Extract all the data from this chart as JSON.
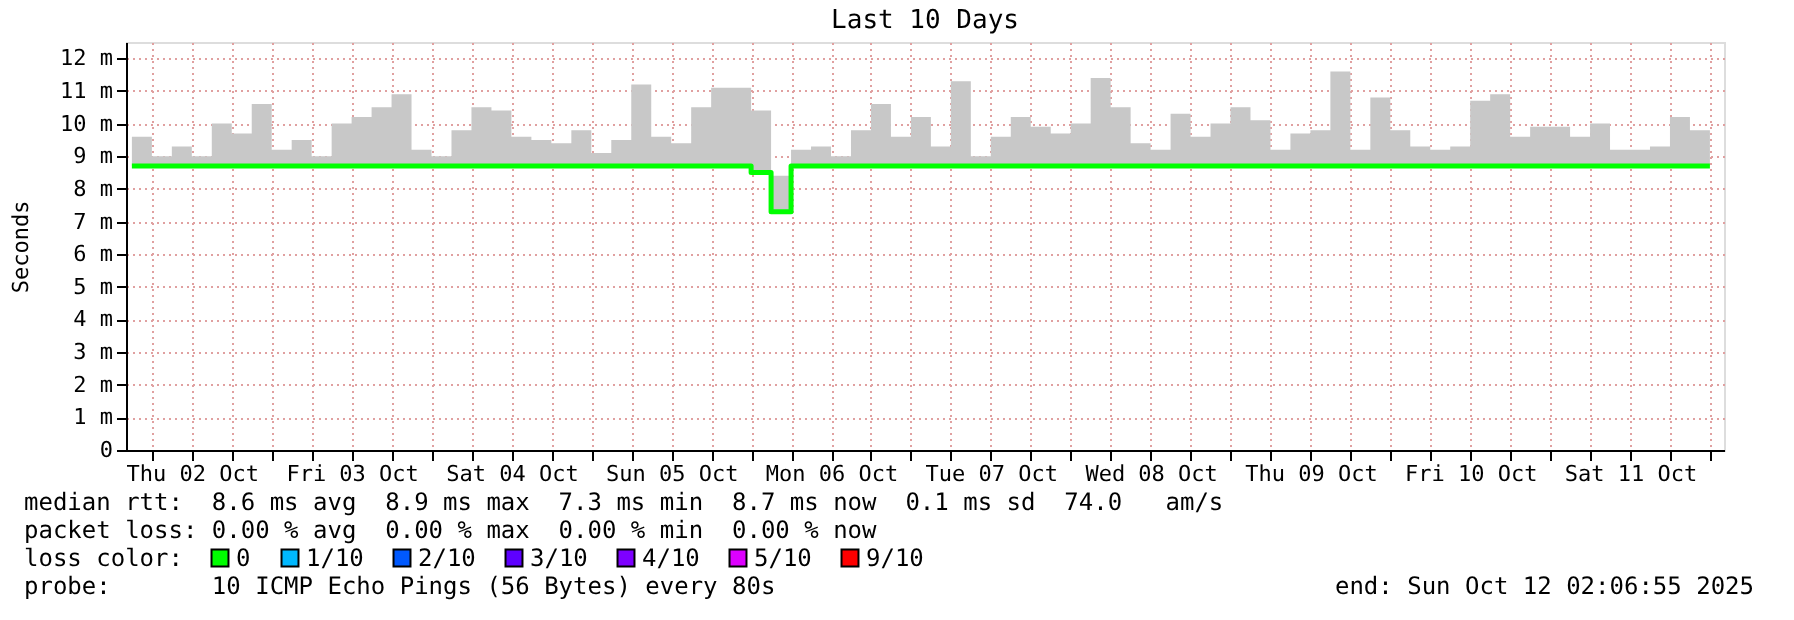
{
  "chart_data": {
    "type": "step",
    "title": "Last 10 Days",
    "ylabel": "Seconds",
    "legend_title": "loss color:",
    "legend": "bottom",
    "grid": true,
    "line_style": "solid",
    "x": [
      "2025-10-02T03:00",
      "2025-10-02T06:00",
      "2025-10-02T09:00",
      "2025-10-02T12:00",
      "2025-10-02T15:00",
      "2025-10-02T18:00",
      "2025-10-02T21:00",
      "2025-10-03T00:00",
      "2025-10-03T03:00",
      "2025-10-03T06:00",
      "2025-10-03T09:00",
      "2025-10-03T12:00",
      "2025-10-03T15:00",
      "2025-10-03T18:00",
      "2025-10-03T21:00",
      "2025-10-04T00:00",
      "2025-10-04T03:00",
      "2025-10-04T06:00",
      "2025-10-04T09:00",
      "2025-10-04T12:00",
      "2025-10-04T15:00",
      "2025-10-04T18:00",
      "2025-10-04T21:00",
      "2025-10-05T00:00",
      "2025-10-05T03:00",
      "2025-10-05T06:00",
      "2025-10-05T09:00",
      "2025-10-05T12:00",
      "2025-10-05T15:00",
      "2025-10-05T18:00",
      "2025-10-05T21:00",
      "2025-10-06T00:00",
      "2025-10-06T03:00",
      "2025-10-06T06:00",
      "2025-10-06T09:00",
      "2025-10-06T12:00",
      "2025-10-06T15:00",
      "2025-10-06T18:00",
      "2025-10-06T21:00",
      "2025-10-07T00:00",
      "2025-10-07T03:00",
      "2025-10-07T06:00",
      "2025-10-07T09:00",
      "2025-10-07T12:00",
      "2025-10-07T15:00",
      "2025-10-07T18:00",
      "2025-10-07T21:00",
      "2025-10-08T00:00",
      "2025-10-08T03:00",
      "2025-10-08T06:00",
      "2025-10-08T09:00",
      "2025-10-08T12:00",
      "2025-10-08T15:00",
      "2025-10-08T18:00",
      "2025-10-08T21:00",
      "2025-10-09T00:00",
      "2025-10-09T03:00",
      "2025-10-09T06:00",
      "2025-10-09T09:00",
      "2025-10-09T12:00",
      "2025-10-09T15:00",
      "2025-10-09T18:00",
      "2025-10-09T21:00",
      "2025-10-10T00:00",
      "2025-10-10T03:00",
      "2025-10-10T06:00",
      "2025-10-10T09:00",
      "2025-10-10T12:00",
      "2025-10-10T15:00",
      "2025-10-10T18:00",
      "2025-10-10T21:00",
      "2025-10-11T00:00",
      "2025-10-11T03:00",
      "2025-10-11T06:00",
      "2025-10-11T09:00",
      "2025-10-11T12:00",
      "2025-10-11T15:00",
      "2025-10-11T18:00",
      "2025-10-11T21:00",
      "2025-10-12T00:00"
    ],
    "series": [
      {
        "name": "0",
        "color": "#00ff00",
        "values": [
          8.7,
          8.7,
          8.7,
          8.7,
          8.7,
          8.7,
          8.7,
          8.7,
          8.7,
          8.7,
          8.7,
          8.7,
          8.7,
          8.7,
          8.7,
          8.7,
          8.7,
          8.7,
          8.7,
          8.7,
          8.7,
          8.7,
          8.7,
          8.7,
          8.7,
          8.7,
          8.7,
          8.7,
          8.7,
          8.7,
          8.7,
          8.5,
          7.3,
          8.7,
          8.7,
          8.7,
          8.7,
          8.7,
          8.7,
          8.7,
          8.7,
          8.7,
          8.7,
          8.7,
          8.7,
          8.7,
          8.7,
          8.7,
          8.7,
          8.7,
          8.7,
          8.7,
          8.7,
          8.7,
          8.7,
          8.7,
          8.7,
          8.7,
          8.7,
          8.7,
          8.7,
          8.7,
          8.7,
          8.7,
          8.7,
          8.7,
          8.7,
          8.7,
          8.7,
          8.7,
          8.7,
          8.7,
          8.7,
          8.7,
          8.7,
          8.7,
          8.7,
          8.7,
          8.7,
          8.7
        ],
        "lower": [
          8.7,
          8.7,
          8.7,
          8.7,
          8.7,
          8.7,
          8.7,
          8.7,
          8.7,
          8.7,
          8.7,
          8.7,
          8.7,
          8.7,
          8.7,
          8.7,
          8.7,
          8.7,
          8.7,
          8.7,
          8.7,
          8.7,
          8.7,
          8.7,
          8.7,
          8.7,
          8.7,
          8.7,
          8.7,
          8.7,
          8.7,
          8.5,
          7.3,
          8.7,
          8.7,
          8.7,
          8.7,
          8.7,
          8.7,
          8.7,
          8.7,
          8.7,
          8.7,
          8.7,
          8.7,
          8.7,
          8.7,
          8.7,
          8.7,
          8.7,
          8.7,
          8.7,
          8.7,
          8.7,
          8.7,
          8.7,
          8.7,
          8.7,
          8.7,
          8.7,
          8.7,
          8.7,
          8.7,
          8.7,
          8.7,
          8.7,
          8.7,
          8.7,
          8.7,
          8.7,
          8.7,
          8.7,
          8.7,
          8.7,
          8.7,
          8.7,
          8.7,
          8.7,
          8.7,
          8.7
        ],
        "upper": [
          9.6,
          9.0,
          9.3,
          9.0,
          10.0,
          9.7,
          10.6,
          9.2,
          9.5,
          9.0,
          10.0,
          10.2,
          10.5,
          10.9,
          9.2,
          9.0,
          9.8,
          10.5,
          10.4,
          9.6,
          9.5,
          9.4,
          9.8,
          9.1,
          9.5,
          11.2,
          9.6,
          9.4,
          10.5,
          11.1,
          11.1,
          10.4,
          8.4,
          9.2,
          9.3,
          9.0,
          9.8,
          10.6,
          9.6,
          10.2,
          9.3,
          11.3,
          9.0,
          9.6,
          10.2,
          9.9,
          9.7,
          10.0,
          11.4,
          10.5,
          9.4,
          9.2,
          10.3,
          9.6,
          10.0,
          10.5,
          10.1,
          9.2,
          9.7,
          9.8,
          11.6,
          9.2,
          10.8,
          9.8,
          9.3,
          9.2,
          9.3,
          10.7,
          10.9,
          9.6,
          9.9,
          9.9,
          9.6,
          10.0,
          9.2,
          9.2,
          9.3,
          10.2,
          9.8,
          11.0
        ]
      },
      {
        "name": "1/10",
        "color": "#00b8ff",
        "values": [
          null,
          null,
          null,
          null,
          null,
          null,
          null,
          null,
          null,
          null,
          null,
          null,
          null,
          null,
          null,
          null,
          null,
          null,
          null,
          null,
          null,
          null,
          null,
          null,
          null,
          null,
          null,
          null,
          null,
          null,
          null,
          null,
          null,
          null,
          null,
          null,
          null,
          null,
          null,
          null,
          null,
          null,
          null,
          null,
          null,
          null,
          null,
          null,
          null,
          null,
          null,
          null,
          null,
          null,
          null,
          null,
          null,
          null,
          null,
          null,
          null,
          null,
          null,
          null,
          null,
          null,
          null,
          null,
          null,
          null,
          null,
          null,
          null,
          null,
          null,
          null,
          null,
          null,
          null,
          null
        ]
      },
      {
        "name": "2/10",
        "color": "#0059ff",
        "values": [
          null,
          null,
          null,
          null,
          null,
          null,
          null,
          null,
          null,
          null,
          null,
          null,
          null,
          null,
          null,
          null,
          null,
          null,
          null,
          null,
          null,
          null,
          null,
          null,
          null,
          null,
          null,
          null,
          null,
          null,
          null,
          null,
          null,
          null,
          null,
          null,
          null,
          null,
          null,
          null,
          null,
          null,
          null,
          null,
          null,
          null,
          null,
          null,
          null,
          null,
          null,
          null,
          null,
          null,
          null,
          null,
          null,
          null,
          null,
          null,
          null,
          null,
          null,
          null,
          null,
          null,
          null,
          null,
          null,
          null,
          null,
          null,
          null,
          null,
          null,
          null,
          null,
          null,
          null,
          null
        ]
      },
      {
        "name": "3/10",
        "color": "#5e00ff",
        "values": [
          null,
          null,
          null,
          null,
          null,
          null,
          null,
          null,
          null,
          null,
          null,
          null,
          null,
          null,
          null,
          null,
          null,
          null,
          null,
          null,
          null,
          null,
          null,
          null,
          null,
          null,
          null,
          null,
          null,
          null,
          null,
          null,
          null,
          null,
          null,
          null,
          null,
          null,
          null,
          null,
          null,
          null,
          null,
          null,
          null,
          null,
          null,
          null,
          null,
          null,
          null,
          null,
          null,
          null,
          null,
          null,
          null,
          null,
          null,
          null,
          null,
          null,
          null,
          null,
          null,
          null,
          null,
          null,
          null,
          null,
          null,
          null,
          null,
          null,
          null,
          null,
          null,
          null,
          null,
          null
        ]
      },
      {
        "name": "4/10",
        "color": "#7e00ff",
        "values": [
          null,
          null,
          null,
          null,
          null,
          null,
          null,
          null,
          null,
          null,
          null,
          null,
          null,
          null,
          null,
          null,
          null,
          null,
          null,
          null,
          null,
          null,
          null,
          null,
          null,
          null,
          null,
          null,
          null,
          null,
          null,
          null,
          null,
          null,
          null,
          null,
          null,
          null,
          null,
          null,
          null,
          null,
          null,
          null,
          null,
          null,
          null,
          null,
          null,
          null,
          null,
          null,
          null,
          null,
          null,
          null,
          null,
          null,
          null,
          null,
          null,
          null,
          null,
          null,
          null,
          null,
          null,
          null,
          null,
          null,
          null,
          null,
          null,
          null,
          null,
          null,
          null,
          null,
          null,
          null
        ]
      },
      {
        "name": "5/10",
        "color": "#dd00ff",
        "values": [
          null,
          null,
          null,
          null,
          null,
          null,
          null,
          null,
          null,
          null,
          null,
          null,
          null,
          null,
          null,
          null,
          null,
          null,
          null,
          null,
          null,
          null,
          null,
          null,
          null,
          null,
          null,
          null,
          null,
          null,
          null,
          null,
          null,
          null,
          null,
          null,
          null,
          null,
          null,
          null,
          null,
          null,
          null,
          null,
          null,
          null,
          null,
          null,
          null,
          null,
          null,
          null,
          null,
          null,
          null,
          null,
          null,
          null,
          null,
          null,
          null,
          null,
          null,
          null,
          null,
          null,
          null,
          null,
          null,
          null,
          null,
          null,
          null,
          null,
          null,
          null,
          null,
          null,
          null,
          null
        ]
      },
      {
        "name": "9/10",
        "color": "#ff0000",
        "values": [
          null,
          null,
          null,
          null,
          null,
          null,
          null,
          null,
          null,
          null,
          null,
          null,
          null,
          null,
          null,
          null,
          null,
          null,
          null,
          null,
          null,
          null,
          null,
          null,
          null,
          null,
          null,
          null,
          null,
          null,
          null,
          null,
          null,
          null,
          null,
          null,
          null,
          null,
          null,
          null,
          null,
          null,
          null,
          null,
          null,
          null,
          null,
          null,
          null,
          null,
          null,
          null,
          null,
          null,
          null,
          null,
          null,
          null,
          null,
          null,
          null,
          null,
          null,
          null,
          null,
          null,
          null,
          null,
          null,
          null,
          null,
          null,
          null,
          null,
          null,
          null,
          null,
          null,
          null,
          null
        ]
      }
    ],
    "xlim": [
      "2025-10-02T02:07",
      "2025-10-12T02:07"
    ],
    "xticks": [
      {
        "value": "2025-10-02T06:00",
        "label": null
      },
      {
        "value": "2025-10-02T12:00",
        "label": "Thu 02 Oct"
      },
      {
        "value": "2025-10-02T18:00",
        "label": null
      },
      {
        "value": "2025-10-03T00:00",
        "label": null
      },
      {
        "value": "2025-10-03T06:00",
        "label": null
      },
      {
        "value": "2025-10-03T12:00",
        "label": "Fri 03 Oct"
      },
      {
        "value": "2025-10-03T18:00",
        "label": null
      },
      {
        "value": "2025-10-04T00:00",
        "label": null
      },
      {
        "value": "2025-10-04T06:00",
        "label": null
      },
      {
        "value": "2025-10-04T12:00",
        "label": "Sat 04 Oct"
      },
      {
        "value": "2025-10-04T18:00",
        "label": null
      },
      {
        "value": "2025-10-05T00:00",
        "label": null
      },
      {
        "value": "2025-10-05T06:00",
        "label": null
      },
      {
        "value": "2025-10-05T12:00",
        "label": "Sun 05 Oct"
      },
      {
        "value": "2025-10-05T18:00",
        "label": null
      },
      {
        "value": "2025-10-06T00:00",
        "label": null
      },
      {
        "value": "2025-10-06T06:00",
        "label": null
      },
      {
        "value": "2025-10-06T12:00",
        "label": "Mon 06 Oct"
      },
      {
        "value": "2025-10-06T18:00",
        "label": null
      },
      {
        "value": "2025-10-07T00:00",
        "label": null
      },
      {
        "value": "2025-10-07T06:00",
        "label": null
      },
      {
        "value": "2025-10-07T12:00",
        "label": "Tue 07 Oct"
      },
      {
        "value": "2025-10-07T18:00",
        "label": null
      },
      {
        "value": "2025-10-08T00:00",
        "label": null
      },
      {
        "value": "2025-10-08T06:00",
        "label": null
      },
      {
        "value": "2025-10-08T12:00",
        "label": "Wed 08 Oct"
      },
      {
        "value": "2025-10-08T18:00",
        "label": null
      },
      {
        "value": "2025-10-09T00:00",
        "label": null
      },
      {
        "value": "2025-10-09T06:00",
        "label": null
      },
      {
        "value": "2025-10-09T12:00",
        "label": "Thu 09 Oct"
      },
      {
        "value": "2025-10-09T18:00",
        "label": null
      },
      {
        "value": "2025-10-10T00:00",
        "label": null
      },
      {
        "value": "2025-10-10T06:00",
        "label": null
      },
      {
        "value": "2025-10-10T12:00",
        "label": "Fri 10 Oct"
      },
      {
        "value": "2025-10-10T18:00",
        "label": null
      },
      {
        "value": "2025-10-11T00:00",
        "label": null
      },
      {
        "value": "2025-10-11T06:00",
        "label": null
      },
      {
        "value": "2025-10-11T12:00",
        "label": "Sat 11 Oct"
      },
      {
        "value": "2025-10-11T18:00",
        "label": null
      },
      {
        "value": "2025-10-12T00:00",
        "label": null
      }
    ],
    "ylim": [
      0,
      12.5
    ],
    "yticks": [
      0,
      {
        "value": 1,
        "label": "1 m"
      },
      {
        "value": 2,
        "label": "2 m"
      },
      {
        "value": 3,
        "label": "3 m"
      },
      {
        "value": 4,
        "label": "4 m"
      },
      {
        "value": 5,
        "label": "5 m"
      },
      {
        "value": 6,
        "label": "6 m"
      },
      {
        "value": 7,
        "label": "7 m"
      },
      {
        "value": 8,
        "label": "8 m"
      },
      {
        "value": 9,
        "label": "9 m"
      },
      {
        "value": 10,
        "label": "10 m"
      },
      {
        "value": 11,
        "label": "11 m"
      },
      {
        "value": 12,
        "label": "12 m"
      }
    ],
    "annotations": [
      "median rtt:  8.6 ms avg  8.9 ms max  7.3 ms min  8.7 ms now  0.1 ms sd  74.0   am/s",
      "packet loss: 0.00 % avg  0.00 % max  0.00 % min  0.00 % now",
      "probe:       10 ICMP Echo Pings (56 Bytes) every 80s",
      "end: Sun Oct 12 02:06:55 2025"
    ]
  }
}
